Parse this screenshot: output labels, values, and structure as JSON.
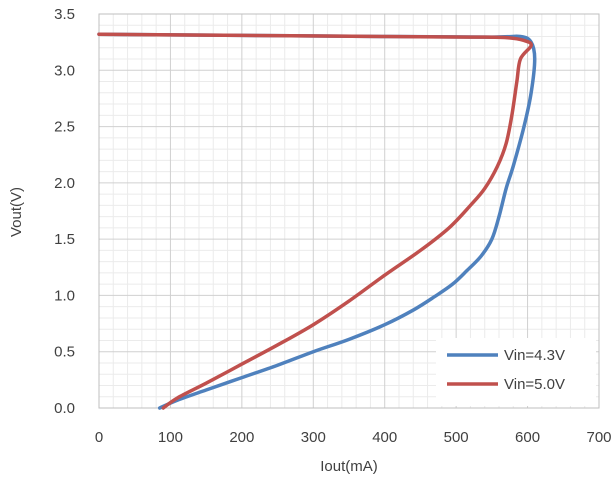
{
  "chart_data": {
    "type": "line",
    "title": "",
    "xlabel": "Iout(mA)",
    "ylabel": "Vout(V)",
    "xlim": [
      0,
      700
    ],
    "ylim": [
      0,
      3.5
    ],
    "x_ticks": [
      0,
      100,
      200,
      300,
      400,
      500,
      600,
      700
    ],
    "x_tick_labels": [
      "0",
      "100",
      "200",
      "300",
      "400",
      "500",
      "600",
      "700"
    ],
    "y_ticks": [
      0,
      0.5,
      1.0,
      1.5,
      2.0,
      2.5,
      3.0,
      3.5
    ],
    "y_tick_labels": [
      "0.0",
      "0.5",
      "1.0",
      "1.5",
      "2.0",
      "2.5",
      "3.0",
      "3.5"
    ],
    "grid": true,
    "minor_grid": true,
    "legend_position": "bottom-right",
    "series": [
      {
        "name": "Vin=4.3V",
        "color": "#4F81BD",
        "points": [
          [
            0,
            3.32
          ],
          [
            200,
            3.31
          ],
          [
            400,
            3.3
          ],
          [
            550,
            3.295
          ],
          [
            590,
            3.3
          ],
          [
            605,
            3.25
          ],
          [
            610,
            3.1
          ],
          [
            605,
            2.8
          ],
          [
            595,
            2.5
          ],
          [
            580,
            2.15
          ],
          [
            570,
            1.95
          ],
          [
            560,
            1.7
          ],
          [
            550,
            1.5
          ],
          [
            535,
            1.35
          ],
          [
            515,
            1.22
          ],
          [
            495,
            1.1
          ],
          [
            470,
            0.99
          ],
          [
            440,
            0.87
          ],
          [
            400,
            0.74
          ],
          [
            350,
            0.61
          ],
          [
            300,
            0.5
          ],
          [
            250,
            0.38
          ],
          [
            200,
            0.27
          ],
          [
            150,
            0.16
          ],
          [
            110,
            0.07
          ],
          [
            85,
            0
          ]
        ]
      },
      {
        "name": "Vin=5.0V",
        "color": "#C0504D",
        "points": [
          [
            0,
            3.32
          ],
          [
            200,
            3.31
          ],
          [
            400,
            3.3
          ],
          [
            520,
            3.295
          ],
          [
            570,
            3.29
          ],
          [
            595,
            3.265
          ],
          [
            605,
            3.22
          ],
          [
            590,
            3.1
          ],
          [
            585,
            2.9
          ],
          [
            578,
            2.6
          ],
          [
            570,
            2.35
          ],
          [
            558,
            2.15
          ],
          [
            540,
            1.95
          ],
          [
            520,
            1.8
          ],
          [
            490,
            1.6
          ],
          [
            450,
            1.4
          ],
          [
            400,
            1.18
          ],
          [
            350,
            0.95
          ],
          [
            300,
            0.74
          ],
          [
            250,
            0.56
          ],
          [
            200,
            0.39
          ],
          [
            150,
            0.22
          ],
          [
            110,
            0.09
          ],
          [
            90,
            0
          ]
        ]
      }
    ]
  }
}
